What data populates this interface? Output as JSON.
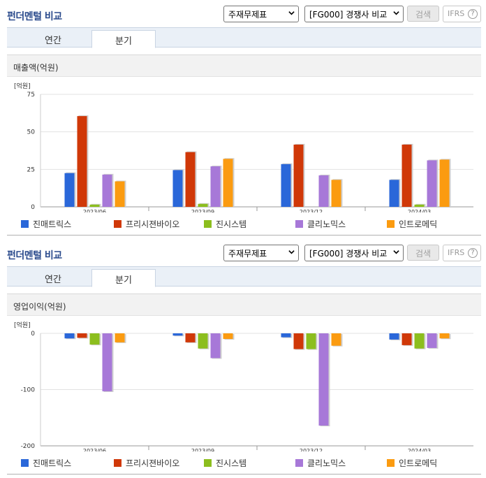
{
  "colors": {
    "s0": "#2a67d9",
    "s1": "#d03808",
    "s2": "#8cbe1e",
    "s3": "#a778d8",
    "s4": "#fb9b10"
  },
  "panels": [
    {
      "title": "펀더멘털 비교",
      "select1": "주재무제표",
      "select2": "[FG000] 경쟁사 비교",
      "search": "검색",
      "ifrs": "IFRS",
      "help": "?",
      "tab_annual": "연간",
      "tab_quarter": "분기",
      "metric": "매출액(억원)",
      "unit": "[억원]",
      "legend": [
        "진매트릭스",
        "프리시젼바이오",
        "진시스템",
        "클리노믹스",
        "인트로메딕"
      ]
    },
    {
      "title": "펀더멘털 비교",
      "select1": "주재무제표",
      "select2": "[FG000] 경쟁사 비교",
      "search": "검색",
      "ifrs": "IFRS",
      "help": "?",
      "tab_annual": "연간",
      "tab_quarter": "분기",
      "metric": "영업이익(억원)",
      "unit": "[억원]",
      "legend": [
        "진매트릭스",
        "프리시젼바이오",
        "진시스템",
        "클리노믹스",
        "인트로메딕"
      ]
    }
  ],
  "chart_data": [
    {
      "type": "bar",
      "title": "매출액(억원)",
      "ylabel": "[억원]",
      "categories": [
        "2023/06",
        "2023/09",
        "2023/12",
        "2024/03"
      ],
      "ylim": [
        0,
        75
      ],
      "yticks": [
        0,
        25,
        50,
        75
      ],
      "grid": true,
      "legend": "bottom",
      "series": [
        {
          "name": "진매트릭스",
          "values": [
            22.5,
            24.5,
            28.5,
            18
          ]
        },
        {
          "name": "프리시젼바이오",
          "values": [
            60.5,
            36.5,
            41.5,
            41.5
          ]
        },
        {
          "name": "진시스템",
          "values": [
            1.5,
            2,
            0,
            1.5
          ]
        },
        {
          "name": "클리노믹스",
          "values": [
            21.5,
            27,
            21,
            31
          ]
        },
        {
          "name": "인트로메딕",
          "values": [
            17,
            32,
            18,
            31.5
          ]
        }
      ]
    },
    {
      "type": "bar",
      "title": "영업이익(억원)",
      "ylabel": "[억원]",
      "categories": [
        "2023/06",
        "2023/09",
        "2023/12",
        "2024/03"
      ],
      "ylim": [
        -200,
        0
      ],
      "yticks": [
        -200,
        -100,
        0
      ],
      "grid": true,
      "legend": "bottom",
      "series": [
        {
          "name": "진매트릭스",
          "values": [
            -9,
            -4,
            -7,
            -11
          ]
        },
        {
          "name": "프리시젼바이오",
          "values": [
            -8,
            -16,
            -28,
            -21
          ]
        },
        {
          "name": "진시스템",
          "values": [
            -20,
            -27,
            -28,
            -27
          ]
        },
        {
          "name": "클리노믹스",
          "values": [
            -103,
            -44,
            -164,
            -26
          ]
        },
        {
          "name": "인트로메딕",
          "values": [
            -16,
            -10,
            -22,
            -9
          ]
        }
      ]
    }
  ]
}
